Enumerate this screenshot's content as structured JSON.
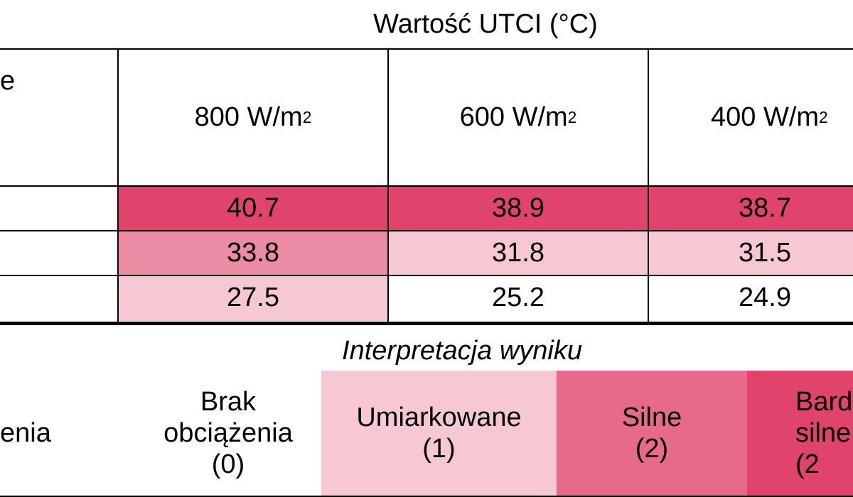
{
  "table": {
    "title": "Wartość UTCI (°C)",
    "left_header_fragment": "e",
    "columns": [
      {
        "label": "800 W/m",
        "sup": "2"
      },
      {
        "label": "600 W/m",
        "sup": "2"
      },
      {
        "label": "400 W/m",
        "sup": "2"
      }
    ],
    "rows": [
      {
        "values": [
          "40.7",
          "38.9",
          "38.7"
        ],
        "colors": [
          "#e0446c",
          "#e0446c",
          "#e0446c"
        ]
      },
      {
        "values": [
          "33.8",
          "31.8",
          "31.5"
        ],
        "colors": [
          "#ec8ca4",
          "#f5c8d4",
          "#f5c8d4"
        ]
      },
      {
        "values": [
          "27.5",
          "25.2",
          "24.9"
        ],
        "colors": [
          "#f5c8d4",
          "#ffffff",
          "#ffffff"
        ]
      }
    ]
  },
  "legend": {
    "title": "Interpretacja wyniku",
    "left_fragment": "enia",
    "items": [
      {
        "line1": "Brak",
        "line2": "obciążenia",
        "line3": "(0)",
        "color": "#ffffff"
      },
      {
        "line1": "Umiarkowane",
        "line2": "(1)",
        "color": "#f5c8d4"
      },
      {
        "line1": "Silne",
        "line2": "(2)",
        "color": "#e86a8a"
      },
      {
        "line1": "Bard",
        "line2": "silne",
        "line3": "(2",
        "color": "#e0446c"
      }
    ]
  }
}
